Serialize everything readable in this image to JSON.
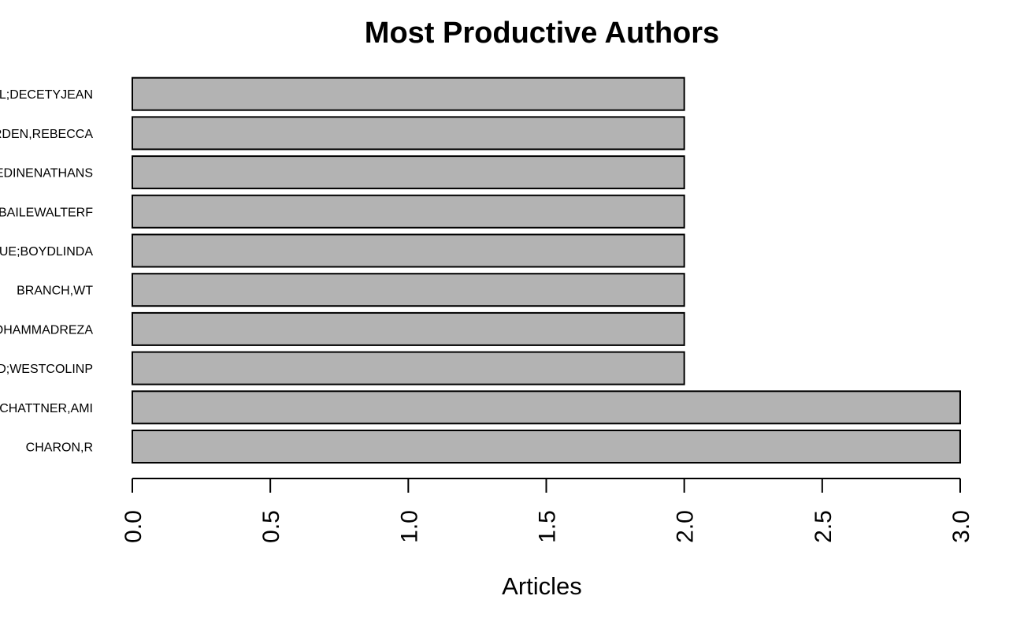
{
  "chart_data": {
    "type": "bar",
    "orientation": "horizontal",
    "title": "Most Productive Authors",
    "xlabel": "Articles",
    "ylabel": "",
    "categories": [
      "CHARON,R",
      "CHATTNER,AMI",
      "D;WESTCOLINP",
      "OHAMMADREZA",
      "BRANCH,WT",
      "UE;BOYDLINDA",
      "BAILEWALTERF",
      "EDINENATHANS",
      "RDEN,REBECCA",
      "L;DECETYJEAN"
    ],
    "values": [
      3,
      3,
      2,
      2,
      2,
      2,
      2,
      2,
      2,
      2
    ],
    "xlim": [
      0,
      3
    ],
    "xticks": [
      "0.0",
      "0.5",
      "1.0",
      "1.5",
      "2.0",
      "2.5",
      "3.0"
    ],
    "bar_color": "#b3b3b3",
    "grid": false,
    "legend": "none"
  }
}
